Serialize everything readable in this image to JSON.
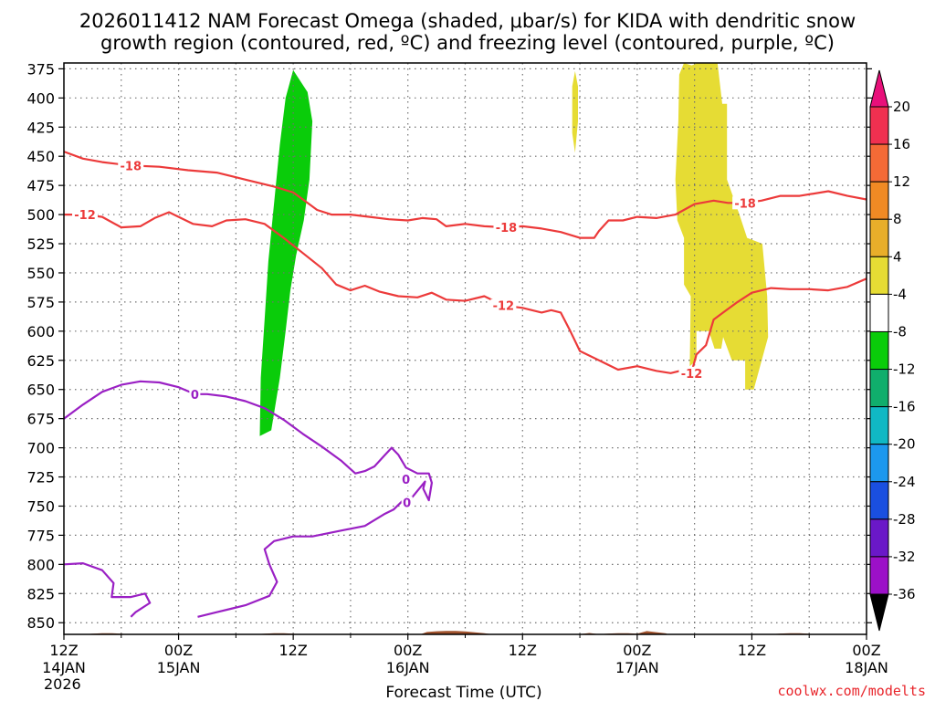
{
  "chart_data": {
    "type": "time-height",
    "title_line1": "2026011412 NAM Forecast Omega (shaded, μbar/s) for KIDA with dendritic snow",
    "title_line2": "growth region (contoured, red, ºC) and freezing level (contoured, purple, ºC)",
    "xlabel": "Forecast Time (UTC)",
    "credit": "coolwx.com/modelts",
    "x_range_hours": [
      0,
      84
    ],
    "y_range_mb": [
      370,
      860
    ],
    "y_ticks": [
      375,
      400,
      425,
      450,
      475,
      500,
      525,
      550,
      575,
      600,
      625,
      650,
      675,
      700,
      725,
      750,
      775,
      800,
      825,
      850
    ],
    "x_ticks": [
      {
        "h": 0,
        "time": "12Z",
        "date": "14JAN",
        "year": "2026"
      },
      {
        "h": 12,
        "time": "00Z",
        "date": "15JAN",
        "year": ""
      },
      {
        "h": 24,
        "time": "12Z",
        "date": "",
        "year": ""
      },
      {
        "h": 36,
        "time": "00Z",
        "date": "16JAN",
        "year": ""
      },
      {
        "h": 48,
        "time": "12Z",
        "date": "",
        "year": ""
      },
      {
        "h": 60,
        "time": "00Z",
        "date": "17JAN",
        "year": ""
      },
      {
        "h": 72,
        "time": "12Z",
        "date": "",
        "year": ""
      },
      {
        "h": 84,
        "time": "00Z",
        "date": "18JAN",
        "year": ""
      }
    ],
    "colorbar": {
      "labels": [
        "20",
        "16",
        "12",
        "8",
        "4",
        "-4",
        "-8",
        "-12",
        "-16",
        "-20",
        "-24",
        "-28",
        "-32",
        "-36"
      ],
      "boundaries": [
        20,
        16,
        12,
        8,
        4,
        -4,
        -8,
        -12,
        -16,
        -20,
        -24,
        -28,
        -32,
        -36
      ],
      "colors": [
        "#f03050",
        "#f46a36",
        "#f08a24",
        "#e8ae2a",
        "#e6dc34",
        "#ffffff",
        "#0acc0a",
        "#10ae6c",
        "#10b8c4",
        "#1c98ee",
        "#1a4fe0",
        "#6a18c8",
        "#9c10c8",
        "#a0a0a0"
      ],
      "top_arrow_color": "#e8107a",
      "bottom_arrow_color": "#000000"
    },
    "terrain_color": "#a0522d",
    "shaded_regions": [
      {
        "name": "omega-negative-green",
        "value_range": [
          -8,
          -4
        ],
        "color": "#0acc0a",
        "points": [
          [
            20.5,
            690
          ],
          [
            21.7,
            685
          ],
          [
            22.6,
            640
          ],
          [
            23.2,
            600
          ],
          [
            23.7,
            565
          ],
          [
            24.3,
            535
          ],
          [
            25.1,
            505
          ],
          [
            25.7,
            470
          ],
          [
            26,
            420
          ],
          [
            25.5,
            395
          ],
          [
            24.0,
            376
          ],
          [
            23.2,
            400
          ],
          [
            22.6,
            440
          ],
          [
            22.0,
            490
          ],
          [
            21.4,
            540
          ],
          [
            21.0,
            590
          ],
          [
            20.6,
            640
          ]
        ]
      },
      {
        "name": "omega-positive-yellow-thin",
        "value_range": [
          4,
          8
        ],
        "color": "#e6dc34",
        "points": [
          [
            53.5,
            447
          ],
          [
            53.8,
            420
          ],
          [
            53.8,
            390
          ],
          [
            53.5,
            377
          ],
          [
            53.2,
            390
          ],
          [
            53.2,
            430
          ]
        ]
      },
      {
        "name": "omega-positive-yellow-main",
        "value_range": [
          4,
          8
        ],
        "color": "#e6dc34",
        "points": [
          [
            64.9,
            370
          ],
          [
            65.7,
            372
          ],
          [
            66.3,
            370
          ],
          [
            68.4,
            370
          ],
          [
            68.9,
            405
          ],
          [
            69.4,
            405
          ],
          [
            69.4,
            470
          ],
          [
            70.7,
            500
          ],
          [
            71.5,
            520
          ],
          [
            73.1,
            525
          ],
          [
            73.6,
            570
          ],
          [
            73.7,
            605
          ],
          [
            72.2,
            650
          ],
          [
            71.3,
            650
          ],
          [
            71.3,
            625
          ],
          [
            69.9,
            625
          ],
          [
            69.0,
            605
          ],
          [
            68.8,
            615
          ],
          [
            68.1,
            615
          ],
          [
            67.5,
            600
          ],
          [
            66.2,
            600
          ],
          [
            66.2,
            625
          ],
          [
            65.5,
            630
          ],
          [
            65.6,
            570
          ],
          [
            64.9,
            560
          ],
          [
            64.9,
            520
          ],
          [
            64.2,
            505
          ],
          [
            64.0,
            470
          ],
          [
            64.3,
            420
          ],
          [
            64.4,
            380
          ]
        ]
      }
    ],
    "contours": [
      {
        "name": "dgz-contour-minus-18",
        "value": -18,
        "color": "#ec3a3a",
        "label": "-18",
        "label_points": [
          [
            7.0,
            458
          ],
          [
            46.3,
            511
          ],
          [
            71.3,
            490
          ]
        ],
        "points": [
          [
            0,
            446
          ],
          [
            2,
            452
          ],
          [
            4,
            455
          ],
          [
            7,
            458
          ],
          [
            10,
            459
          ],
          [
            13,
            462
          ],
          [
            16,
            464
          ],
          [
            19,
            470
          ],
          [
            22,
            476
          ],
          [
            24,
            481
          ],
          [
            25.5,
            490
          ],
          [
            26.5,
            496
          ],
          [
            28,
            500
          ],
          [
            30,
            500
          ],
          [
            32,
            502
          ],
          [
            34,
            504
          ],
          [
            36,
            505
          ],
          [
            37.5,
            503
          ],
          [
            39,
            504
          ],
          [
            40,
            510
          ],
          [
            42,
            508
          ],
          [
            44,
            510
          ],
          [
            46.3,
            511
          ],
          [
            48,
            510
          ],
          [
            50,
            512
          ],
          [
            52,
            515
          ],
          [
            54,
            520
          ],
          [
            55.5,
            520
          ],
          [
            56,
            514
          ],
          [
            57,
            505
          ],
          [
            58.5,
            505
          ],
          [
            60,
            502
          ],
          [
            62,
            503
          ],
          [
            64,
            500
          ],
          [
            66,
            491
          ],
          [
            68,
            488
          ],
          [
            69.5,
            490
          ],
          [
            71.3,
            490
          ],
          [
            73,
            488
          ],
          [
            75,
            484
          ],
          [
            77,
            484
          ],
          [
            80,
            480
          ],
          [
            82,
            484
          ],
          [
            84,
            487
          ]
        ]
      },
      {
        "name": "dgz-contour-minus-12",
        "value": -12,
        "color": "#ec3a3a",
        "label": "-12",
        "label_points": [
          [
            2.2,
            500
          ],
          [
            46.0,
            578
          ],
          [
            65.7,
            636
          ]
        ],
        "points": [
          [
            0,
            500
          ],
          [
            2.2,
            500
          ],
          [
            4,
            502
          ],
          [
            6,
            511
          ],
          [
            8,
            510
          ],
          [
            9.5,
            503
          ],
          [
            11,
            498
          ],
          [
            12,
            502
          ],
          [
            13.5,
            508
          ],
          [
            15.5,
            510
          ],
          [
            17,
            505
          ],
          [
            19,
            504
          ],
          [
            21,
            508
          ],
          [
            23,
            520
          ],
          [
            25,
            533
          ],
          [
            27,
            546
          ],
          [
            28.5,
            560
          ],
          [
            30,
            565
          ],
          [
            31.5,
            561
          ],
          [
            33,
            566
          ],
          [
            35,
            570
          ],
          [
            37,
            571
          ],
          [
            38.5,
            567
          ],
          [
            40,
            573
          ],
          [
            42,
            574
          ],
          [
            44,
            570
          ],
          [
            46,
            578
          ],
          [
            48,
            580
          ],
          [
            50,
            584
          ],
          [
            51,
            582
          ],
          [
            52,
            584
          ],
          [
            53,
            600
          ],
          [
            54,
            617
          ],
          [
            56,
            625
          ],
          [
            58,
            633
          ],
          [
            60,
            630
          ],
          [
            62,
            634
          ],
          [
            63.5,
            636
          ],
          [
            65,
            633
          ],
          [
            65.7,
            635
          ],
          [
            66.2,
            620
          ],
          [
            67.2,
            612
          ],
          [
            68.0,
            590
          ],
          [
            69.0,
            584
          ],
          [
            70.5,
            575
          ],
          [
            72,
            567
          ],
          [
            74,
            563
          ],
          [
            76,
            564
          ],
          [
            78,
            564
          ],
          [
            80,
            565
          ],
          [
            82,
            562
          ],
          [
            84,
            555
          ]
        ]
      },
      {
        "name": "freezing-level-contour-upper",
        "value": 0,
        "color": "#9a20c4",
        "label": "0",
        "label_points": [
          [
            13.7,
            654
          ],
          [
            35.8,
            727
          ]
        ],
        "points": [
          [
            0,
            675
          ],
          [
            2,
            663
          ],
          [
            4,
            652
          ],
          [
            6,
            646
          ],
          [
            8,
            643
          ],
          [
            10,
            644
          ],
          [
            12,
            648
          ],
          [
            13.7,
            654
          ],
          [
            15,
            654
          ],
          [
            17,
            656
          ],
          [
            19,
            660
          ],
          [
            21,
            666
          ],
          [
            23,
            676
          ],
          [
            25,
            688
          ],
          [
            27,
            699
          ],
          [
            29,
            711
          ],
          [
            30.5,
            722
          ],
          [
            31.5,
            720
          ],
          [
            32.5,
            716
          ],
          [
            33.5,
            707
          ],
          [
            34.3,
            700
          ],
          [
            35,
            706
          ],
          [
            35.8,
            717
          ],
          [
            37,
            722
          ],
          [
            38.2,
            722
          ],
          [
            38.5,
            730
          ],
          [
            38.2,
            745
          ],
          [
            37.6,
            735
          ],
          [
            37.8,
            729
          ],
          [
            36.5,
            742
          ],
          [
            35.5,
            745
          ],
          [
            34.5,
            753
          ],
          [
            33.5,
            757
          ],
          [
            32.5,
            762
          ],
          [
            31.5,
            767
          ],
          [
            29,
            771
          ],
          [
            26,
            776
          ],
          [
            24,
            776
          ],
          [
            22,
            780
          ],
          [
            21,
            787
          ],
          [
            21.5,
            800
          ],
          [
            22.3,
            815
          ],
          [
            21.5,
            827
          ],
          [
            19,
            835
          ],
          [
            16,
            841
          ],
          [
            14,
            845
          ]
        ]
      },
      {
        "name": "freezing-level-contour-lower",
        "value": 0,
        "color": "#9a20c4",
        "label": "0",
        "label_points": [
          [
            35.9,
            747
          ]
        ],
        "points": [
          [
            0,
            800
          ],
          [
            2,
            799
          ],
          [
            4,
            805
          ],
          [
            5.2,
            816
          ],
          [
            5.0,
            828
          ],
          [
            7,
            828
          ],
          [
            8.5,
            825
          ],
          [
            9,
            833
          ],
          [
            7.5,
            841
          ],
          [
            7,
            845
          ]
        ]
      }
    ]
  }
}
